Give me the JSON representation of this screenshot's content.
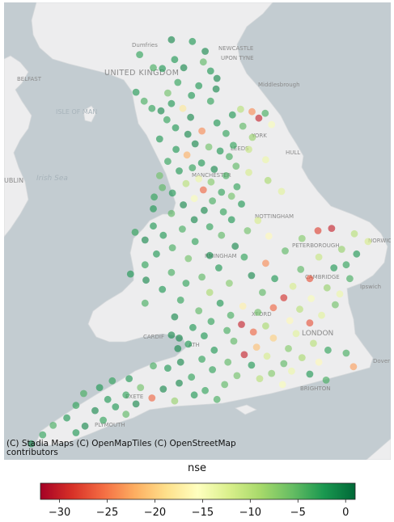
{
  "map": {
    "labels": {
      "dumfries": "Dumfries",
      "newcastle": "NEWCASTLE",
      "upon_tyne": "UPON TYNE",
      "united_kingdom": "UNITED KINGDOM",
      "belfast": "BELFAST",
      "middlesbrough": "Middlesbrough",
      "isle_of_man": "ISLE OF MAN",
      "york": "YORK",
      "leeds": "LEEDS",
      "hull": "HULL",
      "irish_sea": "Irish Sea",
      "dublin": "UBLIN",
      "manchester": "MANCHESTER",
      "nottingham": "NOTTINGHAM",
      "peterborough": "PETERBOROUGH",
      "norwich": "NORWIC",
      "birmingham": "RMINGHAM",
      "cambridge": "CAMBRIDGE",
      "ipswich": "Ipswich",
      "oxford": "XFORD",
      "london": "LONDON",
      "cardiff": "CARDIF",
      "bath": "ATH",
      "dover": "Dover",
      "exeter": "EXETE",
      "brighton": "BRIGHTON",
      "plymouth": "PLYMOUTH"
    },
    "attribution_line1": "(C) Stadia Maps (C) OpenMapTiles (C) OpenStreetMap",
    "attribution_line2": "contributors",
    "colors": {
      "sea": "#c3ccd1",
      "land": "#ededee",
      "place_label": "#8a8a8a",
      "sea_label": "#a7b3ba"
    }
  },
  "legend": {
    "title": "nse",
    "ticks": [
      "−30",
      "−25",
      "−20",
      "−15",
      "−10",
      "−5",
      "0"
    ],
    "tick_values": [
      -30,
      -25,
      -20,
      -15,
      -10,
      -5,
      0
    ],
    "vmin": -32,
    "vmax": 1,
    "colormap": "RdYlGn",
    "colormap_stops": [
      "#a50026",
      "#d73027",
      "#f46d43",
      "#fdae61",
      "#fee08b",
      "#ffffbf",
      "#d9ef8b",
      "#a6d96a",
      "#66bd63",
      "#1a9850",
      "#006837"
    ]
  },
  "stations": [
    {
      "lon": -2.62,
      "lat": 55.3,
      "nse": -1
    },
    {
      "lon": -2.16,
      "lat": 55.28,
      "nse": -2
    },
    {
      "lon": -1.88,
      "lat": 55.16,
      "nse": -1
    },
    {
      "lon": -3.32,
      "lat": 55.12,
      "nse": -3
    },
    {
      "lon": -2.55,
      "lat": 55.06,
      "nse": -2
    },
    {
      "lon": -1.92,
      "lat": 55.03,
      "nse": -5
    },
    {
      "lon": -3.02,
      "lat": 54.96,
      "nse": -4
    },
    {
      "lon": -2.82,
      "lat": 54.95,
      "nse": -2
    },
    {
      "lon": -2.35,
      "lat": 54.96,
      "nse": -1
    },
    {
      "lon": -1.76,
      "lat": 54.92,
      "nse": -2
    },
    {
      "lon": -1.62,
      "lat": 54.83,
      "nse": -1
    },
    {
      "lon": -2.48,
      "lat": 54.78,
      "nse": -3
    },
    {
      "lon": -2.02,
      "lat": 54.74,
      "nse": -2
    },
    {
      "lon": -1.64,
      "lat": 54.7,
      "nse": -1
    },
    {
      "lon": -3.4,
      "lat": 54.66,
      "nse": -2
    },
    {
      "lon": -2.7,
      "lat": 54.65,
      "nse": -6
    },
    {
      "lon": -2.18,
      "lat": 54.62,
      "nse": -2
    },
    {
      "lon": -1.76,
      "lat": 54.55,
      "nse": -3
    },
    {
      "lon": -3.22,
      "lat": 54.55,
      "nse": -4
    },
    {
      "lon": -2.62,
      "lat": 54.52,
      "nse": -2
    },
    {
      "lon": -2.85,
      "lat": 54.43,
      "nse": -1
    },
    {
      "lon": -3.05,
      "lat": 54.46,
      "nse": -3
    },
    {
      "lon": -2.37,
      "lat": 54.46,
      "nse": -18
    },
    {
      "lon": -1.1,
      "lat": 54.45,
      "nse": -10
    },
    {
      "lon": -0.85,
      "lat": 54.42,
      "nse": -24
    },
    {
      "lon": -0.56,
      "lat": 54.4,
      "nse": -4
    },
    {
      "lon": -1.28,
      "lat": 54.38,
      "nse": -2
    },
    {
      "lon": -2.2,
      "lat": 54.35,
      "nse": -1
    },
    {
      "lon": -2.72,
      "lat": 54.32,
      "nse": -3
    },
    {
      "lon": -0.7,
      "lat": 54.34,
      "nse": -30
    },
    {
      "lon": -1.62,
      "lat": 54.28,
      "nse": -2
    },
    {
      "lon": -0.42,
      "lat": 54.26,
      "nse": -15
    },
    {
      "lon": -1.05,
      "lat": 54.24,
      "nse": -5
    },
    {
      "lon": -2.53,
      "lat": 54.22,
      "nse": -2
    },
    {
      "lon": -1.95,
      "lat": 54.18,
      "nse": -24
    },
    {
      "lon": -1.42,
      "lat": 54.15,
      "nse": -3
    },
    {
      "lon": -2.26,
      "lat": 54.14,
      "nse": -1
    },
    {
      "lon": -2.88,
      "lat": 54.08,
      "nse": -2
    },
    {
      "lon": -0.84,
      "lat": 54.1,
      "nse": -8
    },
    {
      "lon": -2.1,
      "lat": 54.02,
      "nse": -1
    },
    {
      "lon": -1.26,
      "lat": 54.0,
      "nse": -3
    },
    {
      "lon": -2.52,
      "lat": 53.95,
      "nse": -2
    },
    {
      "lon": -1.8,
      "lat": 53.98,
      "nse": -6
    },
    {
      "lon": -0.92,
      "lat": 53.95,
      "nse": -11
    },
    {
      "lon": -1.55,
      "lat": 53.93,
      "nse": -2
    },
    {
      "lon": -2.28,
      "lat": 53.88,
      "nse": -22
    },
    {
      "lon": -1.35,
      "lat": 53.86,
      "nse": -4
    },
    {
      "lon": -0.55,
      "lat": 53.82,
      "nse": -14
    },
    {
      "lon": -2.7,
      "lat": 53.8,
      "nse": -3
    },
    {
      "lon": -1.96,
      "lat": 53.78,
      "nse": -2
    },
    {
      "lon": -1.2,
      "lat": 53.74,
      "nse": -5
    },
    {
      "lon": -2.16,
      "lat": 53.72,
      "nse": -3
    },
    {
      "lon": -2.45,
      "lat": 53.68,
      "nse": -2
    },
    {
      "lon": -1.68,
      "lat": 53.7,
      "nse": -1
    },
    {
      "lon": -0.92,
      "lat": 53.66,
      "nse": -12
    },
    {
      "lon": -2.88,
      "lat": 53.62,
      "nse": -6
    },
    {
      "lon": -1.42,
      "lat": 53.62,
      "nse": -4
    },
    {
      "lon": -2.02,
      "lat": 53.58,
      "nse": -14
    },
    {
      "lon": -1.75,
      "lat": 53.54,
      "nse": -7
    },
    {
      "lon": -0.5,
      "lat": 53.56,
      "nse": -9
    },
    {
      "lon": -2.3,
      "lat": 53.52,
      "nse": -10
    },
    {
      "lon": -1.18,
      "lat": 53.48,
      "nse": -3
    },
    {
      "lon": -2.82,
      "lat": 53.47,
      "nse": -5
    },
    {
      "lon": -1.92,
      "lat": 53.44,
      "nse": -26
    },
    {
      "lon": -1.52,
      "lat": 53.41,
      "nse": -3
    },
    {
      "lon": -2.6,
      "lat": 53.4,
      "nse": -2
    },
    {
      "lon": -1.3,
      "lat": 53.36,
      "nse": -6
    },
    {
      "lon": -0.2,
      "lat": 53.42,
      "nse": -13
    },
    {
      "lon": -3.0,
      "lat": 53.35,
      "nse": -3
    },
    {
      "lon": -2.12,
      "lat": 53.33,
      "nse": -15
    },
    {
      "lon": -1.72,
      "lat": 53.3,
      "nse": -4
    },
    {
      "lon": -2.36,
      "lat": 53.25,
      "nse": -1
    },
    {
      "lon": -1.08,
      "lat": 53.26,
      "nse": -2
    },
    {
      "lon": -3.02,
      "lat": 53.2,
      "nse": -2
    },
    {
      "lon": -1.9,
      "lat": 53.18,
      "nse": -1
    },
    {
      "lon": -1.48,
      "lat": 53.16,
      "nse": -3
    },
    {
      "lon": -2.62,
      "lat": 53.14,
      "nse": -5
    },
    {
      "lon": -1.3,
      "lat": 53.06,
      "nse": -2
    },
    {
      "lon": -2.12,
      "lat": 53.06,
      "nse": -1
    },
    {
      "lon": -0.72,
      "lat": 53.05,
      "nse": -12
    },
    {
      "lon": -3.02,
      "lat": 52.98,
      "nse": -2
    },
    {
      "lon": -1.78,
      "lat": 52.97,
      "nse": -3
    },
    {
      "lon": -2.38,
      "lat": 52.94,
      "nse": -4
    },
    {
      "lon": -0.95,
      "lat": 52.92,
      "nse": -6
    },
    {
      "lon": -3.42,
      "lat": 52.9,
      "nse": -3
    },
    {
      "lon": -2.8,
      "lat": 52.86,
      "nse": -2
    },
    {
      "lon": -1.52,
      "lat": 52.86,
      "nse": -5
    },
    {
      "lon": -0.48,
      "lat": 52.85,
      "nse": -16
    },
    {
      "lon": -3.2,
      "lat": 52.8,
      "nse": -1
    },
    {
      "lon": -2.1,
      "lat": 52.78,
      "nse": -3
    },
    {
      "lon": 0.6,
      "lat": 52.92,
      "nse": -28
    },
    {
      "lon": 0.9,
      "lat": 52.95,
      "nse": -30
    },
    {
      "lon": 1.4,
      "lat": 52.88,
      "nse": -10
    },
    {
      "lon": 1.7,
      "lat": 52.78,
      "nse": -12
    },
    {
      "lon": 0.25,
      "lat": 52.82,
      "nse": -7
    },
    {
      "lon": -1.22,
      "lat": 52.72,
      "nse": -1
    },
    {
      "lon": -2.6,
      "lat": 52.7,
      "nse": -4
    },
    {
      "lon": 1.12,
      "lat": 52.68,
      "nse": -8
    },
    {
      "lon": -0.12,
      "lat": 52.66,
      "nse": -5
    },
    {
      "lon": 1.45,
      "lat": 52.62,
      "nse": -2
    },
    {
      "lon": -2.95,
      "lat": 52.62,
      "nse": -2
    },
    {
      "lon": -1.78,
      "lat": 52.6,
      "nse": -1
    },
    {
      "lon": 0.62,
      "lat": 52.58,
      "nse": -11
    },
    {
      "lon": -1.02,
      "lat": 52.58,
      "nse": -3
    },
    {
      "lon": -2.25,
      "lat": 52.56,
      "nse": -6
    },
    {
      "lon": 1.22,
      "lat": 52.48,
      "nse": -3
    },
    {
      "lon": -0.55,
      "lat": 52.5,
      "nse": -24
    },
    {
      "lon": -3.2,
      "lat": 52.48,
      "nse": -3
    },
    {
      "lon": -1.58,
      "lat": 52.44,
      "nse": -2
    },
    {
      "lon": 0.22,
      "lat": 52.42,
      "nse": -5
    },
    {
      "lon": 0.95,
      "lat": 52.44,
      "nse": -2
    },
    {
      "lon": -2.62,
      "lat": 52.38,
      "nse": -4
    },
    {
      "lon": -3.52,
      "lat": 52.36,
      "nse": -2
    },
    {
      "lon": -0.86,
      "lat": 52.34,
      "nse": -1
    },
    {
      "lon": -1.95,
      "lat": 52.32,
      "nse": -5
    },
    {
      "lon": -0.35,
      "lat": 52.3,
      "nse": -2
    },
    {
      "lon": 0.42,
      "lat": 52.3,
      "nse": -27
    },
    {
      "lon": 1.3,
      "lat": 52.3,
      "nse": -4
    },
    {
      "lon": -3.18,
      "lat": 52.28,
      "nse": -1
    },
    {
      "lon": -2.3,
      "lat": 52.24,
      "nse": -3
    },
    {
      "lon": -1.35,
      "lat": 52.24,
      "nse": -7
    },
    {
      "lon": 0.05,
      "lat": 52.2,
      "nse": -12
    },
    {
      "lon": 0.8,
      "lat": 52.18,
      "nse": -8
    },
    {
      "lon": -2.82,
      "lat": 52.16,
      "nse": -2
    },
    {
      "lon": -1.78,
      "lat": 52.12,
      "nse": -9
    },
    {
      "lon": 1.08,
      "lat": 52.1,
      "nse": -14
    },
    {
      "lon": -0.62,
      "lat": 52.12,
      "nse": -5
    },
    {
      "lon": -0.15,
      "lat": 52.05,
      "nse": -29
    },
    {
      "lon": 0.45,
      "lat": 52.04,
      "nse": -15
    },
    {
      "lon": -2.42,
      "lat": 52.02,
      "nse": -3
    },
    {
      "lon": -1.55,
      "lat": 51.98,
      "nse": -2
    },
    {
      "lon": -3.2,
      "lat": 51.98,
      "nse": -4
    },
    {
      "lon": 0.98,
      "lat": 51.96,
      "nse": -6
    },
    {
      "lon": -1.05,
      "lat": 51.94,
      "nse": -17
    },
    {
      "lon": -0.38,
      "lat": 51.92,
      "nse": -26
    },
    {
      "lon": 0.2,
      "lat": 51.9,
      "nse": -10
    },
    {
      "lon": -2.02,
      "lat": 51.88,
      "nse": -5
    },
    {
      "lon": -0.72,
      "lat": 51.86,
      "nse": -6
    },
    {
      "lon": -1.32,
      "lat": 51.82,
      "nse": -4
    },
    {
      "lon": 0.68,
      "lat": 51.82,
      "nse": -13
    },
    {
      "lon": -2.55,
      "lat": 51.8,
      "nse": -1
    },
    {
      "lon": -1.75,
      "lat": 51.74,
      "nse": -3
    },
    {
      "lon": -0.02,
      "lat": 51.75,
      "nse": -16
    },
    {
      "lon": 0.42,
      "lat": 51.72,
      "nse": -27
    },
    {
      "lon": -1.08,
      "lat": 51.7,
      "nse": -30
    },
    {
      "lon": -0.55,
      "lat": 51.68,
      "nse": -9
    },
    {
      "lon": -2.15,
      "lat": 51.66,
      "nse": -2
    },
    {
      "lon": -1.4,
      "lat": 51.62,
      "nse": -4
    },
    {
      "lon": -0.82,
      "lat": 51.6,
      "nse": -26
    },
    {
      "lon": 0.12,
      "lat": 51.58,
      "nse": -13
    },
    {
      "lon": -2.62,
      "lat": 51.56,
      "nse": -1
    },
    {
      "lon": -1.9,
      "lat": 51.55,
      "nse": -2
    },
    {
      "lon": -2.45,
      "lat": 51.52,
      "nse": -1
    },
    {
      "lon": -0.38,
      "lat": 51.52,
      "nse": -20
    },
    {
      "lon": -1.25,
      "lat": 51.48,
      "nse": -5
    },
    {
      "lon": 0.5,
      "lat": 51.45,
      "nse": -10
    },
    {
      "lon": -2.25,
      "lat": 51.44,
      "nse": -2
    },
    {
      "lon": -0.75,
      "lat": 51.4,
      "nse": -21
    },
    {
      "lon": -0.05,
      "lat": 51.38,
      "nse": -7
    },
    {
      "lon": 0.82,
      "lat": 51.36,
      "nse": -3
    },
    {
      "lon": -2.48,
      "lat": 51.38,
      "nse": -1
    },
    {
      "lon": -1.68,
      "lat": 51.36,
      "nse": -2
    },
    {
      "lon": 1.22,
      "lat": 51.32,
      "nse": -4
    },
    {
      "lon": -1.02,
      "lat": 51.3,
      "nse": -30
    },
    {
      "lon": -0.52,
      "lat": 51.28,
      "nse": -12
    },
    {
      "lon": 0.25,
      "lat": 51.26,
      "nse": -9
    },
    {
      "lon": -1.95,
      "lat": 51.24,
      "nse": -3
    },
    {
      "lon": -1.38,
      "lat": 51.2,
      "nse": -5
    },
    {
      "lon": -2.42,
      "lat": 51.2,
      "nse": -1
    },
    {
      "lon": 0.62,
      "lat": 51.2,
      "nse": -16
    },
    {
      "lon": -0.15,
      "lat": 51.18,
      "nse": -5
    },
    {
      "lon": -0.86,
      "lat": 51.16,
      "nse": -2
    },
    {
      "lon": 1.38,
      "lat": 51.14,
      "nse": -23
    },
    {
      "lon": -3.02,
      "lat": 51.15,
      "nse": -4
    },
    {
      "lon": -2.7,
      "lat": 51.12,
      "nse": -2
    },
    {
      "lon": -1.72,
      "lat": 51.1,
      "nse": -3
    },
    {
      "lon": 0.02,
      "lat": 51.08,
      "nse": -14
    },
    {
      "lon": -0.42,
      "lat": 51.05,
      "nse": -7
    },
    {
      "lon": 0.42,
      "lat": 51.04,
      "nse": -2
    },
    {
      "lon": -1.18,
      "lat": 51.02,
      "nse": -6
    },
    {
      "lon": -2.18,
      "lat": 51.0,
      "nse": -3
    },
    {
      "lon": -3.55,
      "lat": 50.98,
      "nse": -2
    },
    {
      "lon": -0.68,
      "lat": 50.98,
      "nse": -10
    },
    {
      "lon": 0.78,
      "lat": 50.96,
      "nse": -4
    },
    {
      "lon": -3.92,
      "lat": 50.95,
      "nse": -3
    },
    {
      "lon": -2.45,
      "lat": 50.92,
      "nse": -1
    },
    {
      "lon": -1.45,
      "lat": 50.9,
      "nse": -5
    },
    {
      "lon": -0.18,
      "lat": 50.9,
      "nse": -15
    },
    {
      "lon": -4.2,
      "lat": 50.86,
      "nse": -2
    },
    {
      "lon": -3.3,
      "lat": 50.86,
      "nse": -6
    },
    {
      "lon": -2.8,
      "lat": 50.84,
      "nse": -1
    },
    {
      "lon": -1.88,
      "lat": 50.82,
      "nse": -3
    },
    {
      "lon": -4.55,
      "lat": 50.78,
      "nse": -4
    },
    {
      "lon": -3.62,
      "lat": 50.76,
      "nse": -3
    },
    {
      "lon": -2.12,
      "lat": 50.76,
      "nse": -2
    },
    {
      "lon": -3.05,
      "lat": 50.72,
      "nse": -26
    },
    {
      "lon": -4.02,
      "lat": 50.7,
      "nse": -2
    },
    {
      "lon": -1.62,
      "lat": 50.7,
      "nse": -4
    },
    {
      "lon": -2.55,
      "lat": 50.68,
      "nse": -8
    },
    {
      "lon": -3.4,
      "lat": 50.64,
      "nse": -1
    },
    {
      "lon": -4.72,
      "lat": 50.62,
      "nse": -3
    },
    {
      "lon": -3.85,
      "lat": 50.6,
      "nse": -2
    },
    {
      "lon": -4.3,
      "lat": 50.55,
      "nse": -1
    },
    {
      "lon": -3.62,
      "lat": 50.5,
      "nse": -5
    },
    {
      "lon": -4.92,
      "lat": 50.45,
      "nse": -2
    },
    {
      "lon": -4.12,
      "lat": 50.42,
      "nse": -3
    },
    {
      "lon": -5.22,
      "lat": 50.35,
      "nse": -4
    },
    {
      "lon": -4.52,
      "lat": 50.34,
      "nse": -1
    },
    {
      "lon": -5.45,
      "lat": 50.22,
      "nse": -3
    },
    {
      "lon": -4.72,
      "lat": 50.25,
      "nse": -2
    },
    {
      "lon": -5.7,
      "lat": 50.1,
      "nse": -1
    }
  ]
}
